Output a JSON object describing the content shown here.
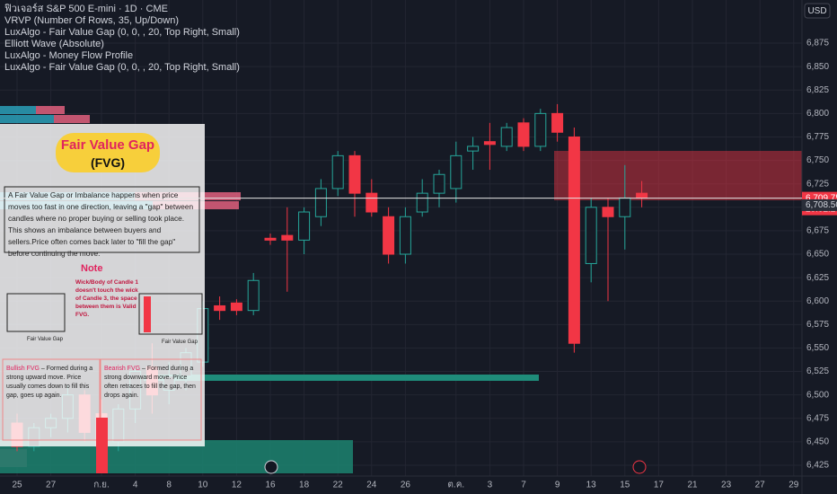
{
  "chart_data": {
    "type": "candlestick",
    "title": "ฟิวเจอร์ส S&P 500 E-mini · 1D · CME",
    "categories": [
      "25",
      null,
      "27",
      null,
      null,
      "ก.ย.",
      null,
      "4",
      null,
      "8",
      null,
      "10",
      null,
      "12",
      null,
      "16",
      null,
      "18",
      null,
      "22",
      null,
      "24",
      null,
      "26",
      null,
      null,
      "ต.ค.",
      null,
      "3",
      null,
      "7",
      null,
      "9",
      null,
      "13",
      null,
      "15",
      null,
      "17",
      null,
      "21",
      null,
      "23",
      null,
      "27",
      null,
      "29"
    ],
    "open": [
      6470,
      6445,
      6465,
      6475,
      6500,
      6480,
      6450,
      6485,
      6530,
      6505,
      6520,
      6535,
      6595,
      6598,
      6590,
      6667,
      6670,
      6665,
      6690,
      6720,
      6755,
      6715,
      6690,
      6650,
      6695,
      6715,
      6720,
      6760,
      6770,
      6765,
      6790,
      6765,
      6800,
      6775,
      6640,
      6700,
      6690,
      6715,
      null,
      null,
      null,
      null,
      null,
      null,
      null,
      null,
      null
    ],
    "high": [
      6480,
      6470,
      6480,
      6510,
      6505,
      6495,
      6490,
      6530,
      6555,
      6535,
      6550,
      6600,
      6605,
      6602,
      6630,
      6672,
      6700,
      6700,
      6730,
      6760,
      6760,
      6730,
      6700,
      6700,
      6730,
      6740,
      6770,
      6775,
      6790,
      6790,
      6795,
      6805,
      6810,
      6785,
      6710,
      6710,
      6745,
      6728,
      null,
      null,
      null,
      null,
      null,
      null,
      null,
      null,
      null
    ],
    "low": [
      6440,
      6440,
      6455,
      6460,
      6450,
      6420,
      6440,
      6470,
      6480,
      6490,
      6505,
      6530,
      6580,
      6585,
      6585,
      6660,
      6610,
      6650,
      6680,
      6712,
      6690,
      6690,
      6640,
      6640,
      6690,
      6700,
      6705,
      6740,
      6740,
      6760,
      6760,
      6760,
      6770,
      6545,
      6620,
      6600,
      6655,
      6700,
      null,
      null,
      null,
      null,
      null,
      null,
      null,
      null,
      null
    ],
    "close": [
      6445,
      6465,
      6475,
      6500,
      6460,
      6445,
      6485,
      6525,
      6500,
      6520,
      6545,
      6592,
      6590,
      6590,
      6622,
      6665,
      6665,
      6695,
      6720,
      6755,
      6715,
      6695,
      6650,
      6690,
      6715,
      6735,
      6755,
      6765,
      6767,
      6785,
      6765,
      6800,
      6780,
      6555,
      6700,
      6690,
      6710,
      6709.75,
      null,
      null,
      null,
      null,
      null,
      null,
      null,
      null,
      null
    ],
    "up_color": "#26a69a",
    "down_color": "#f23645",
    "ylim": [
      6413.5,
      6921
    ],
    "yticks": [
      {
        "value": 6425,
        "label": "6,425"
      },
      {
        "value": 6450,
        "label": "6,450"
      },
      {
        "value": 6475,
        "label": "6,475"
      },
      {
        "value": 6500,
        "label": "6,500"
      },
      {
        "value": 6525,
        "label": "6,525"
      },
      {
        "value": 6550,
        "label": "6,550"
      },
      {
        "value": 6575,
        "label": "6,575"
      },
      {
        "value": 6600,
        "label": "6,600"
      },
      {
        "value": 6625,
        "label": "6,625"
      },
      {
        "value": 6650,
        "label": "6,650"
      },
      {
        "value": 6675,
        "label": "6,675"
      },
      {
        "value": 6700,
        "label": "6,700"
      },
      {
        "value": 6725,
        "label": "6,725"
      },
      {
        "value": 6750,
        "label": "6,750"
      },
      {
        "value": 6775,
        "label": "6,775"
      },
      {
        "value": 6800,
        "label": "6,800"
      },
      {
        "value": 6825,
        "label": "6,825"
      },
      {
        "value": 6850,
        "label": "6,850"
      },
      {
        "value": 6875,
        "label": "6,875"
      }
    ],
    "grid": true,
    "last_price": {
      "value": 6709.75,
      "label": "6,709.75"
    },
    "countdown": "20:02:24",
    "second_price": {
      "value": 6708.5,
      "label": "6,708.50"
    },
    "currency": "USD"
  },
  "indicators": [
    "VRVP (Number Of Rows, 35, Up/Down)",
    "LuxAlgo - Fair Value Gap (0, 0, , 20, Top Right, Small)",
    "Elliott Wave (Absolute)",
    "LuxAlgo - Money Flow Profile",
    "LuxAlgo - Fair Value Gap (0, 0, , 20, Top Right, Small)"
  ],
  "infographic": {
    "title": "Fair Value Gap",
    "subtitle": "(FVG)",
    "description": "A Fair Value Gap or Imbalance happens when price moves too fast in one direction, leaving a \"gap\" between candles where no proper buying or selling took place. This shows an imbalance between buyers and sellers.Price often comes back later to \"fill the gap\" before continuing the move.",
    "note_title": "Note",
    "note": "Wick/Body of Candle 1 doesn't touch the wick of Candle 3, the space between them is Valid FVG.",
    "gap_label_left": "Fair Value Gap",
    "gap_label_right": "Fair Value Gap",
    "bullish_title": "Bullish FVG",
    "bullish": " – Formed during a strong upward move. Price usually comes down to fill this gap, goes up again.",
    "bearish_title": "Bearish FVG",
    "bearish": " – Formed during a strong downward move. Price often retraces to fill the gap, then drops again."
  }
}
